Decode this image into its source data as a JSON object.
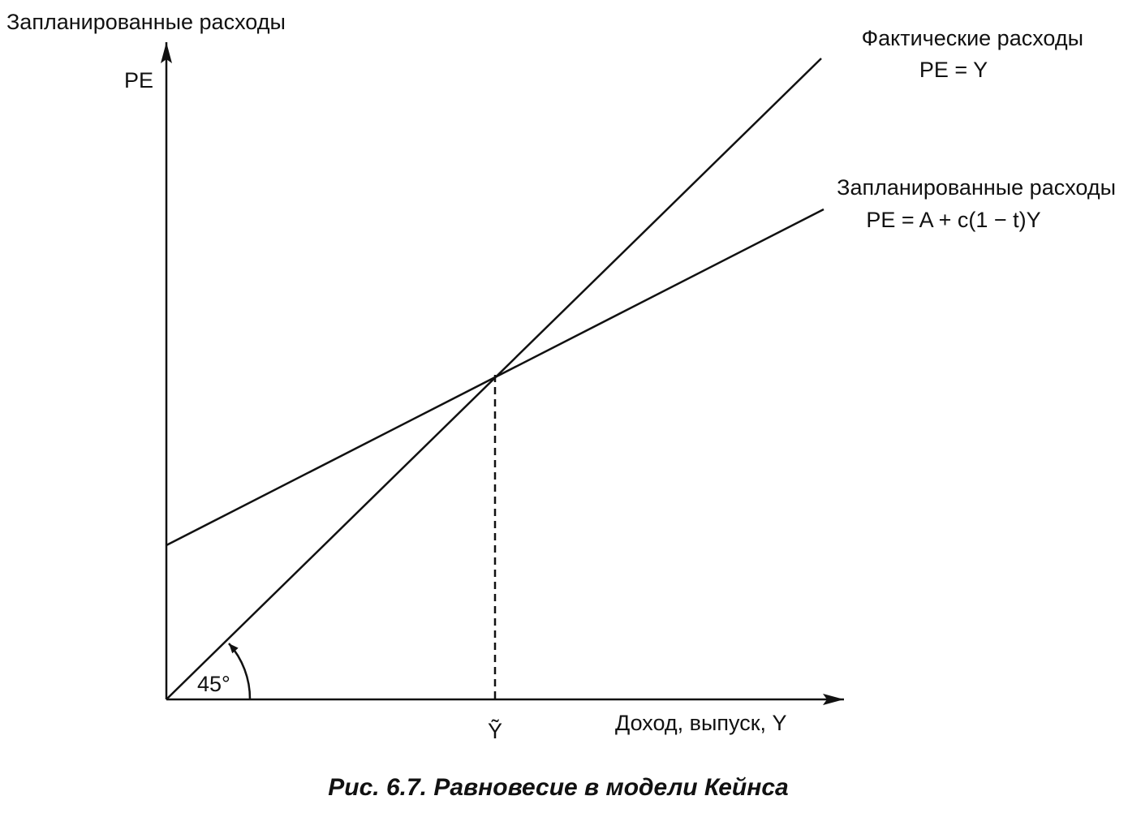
{
  "axes": {
    "y_title": "Запланированные расходы",
    "y_label": "PE",
    "x_label": "Доход, выпуск, Y",
    "equilibrium_label": "Ỹ",
    "angle_label": "45°"
  },
  "lines": [
    {
      "title": "Фактические расходы",
      "formula": "PE = Y"
    },
    {
      "title": "Запланированные расходы",
      "formula": "PE = A + c(1 − t)Y"
    }
  ],
  "caption": "Рис. 6.7. Равновесие в модели Кейнса"
}
